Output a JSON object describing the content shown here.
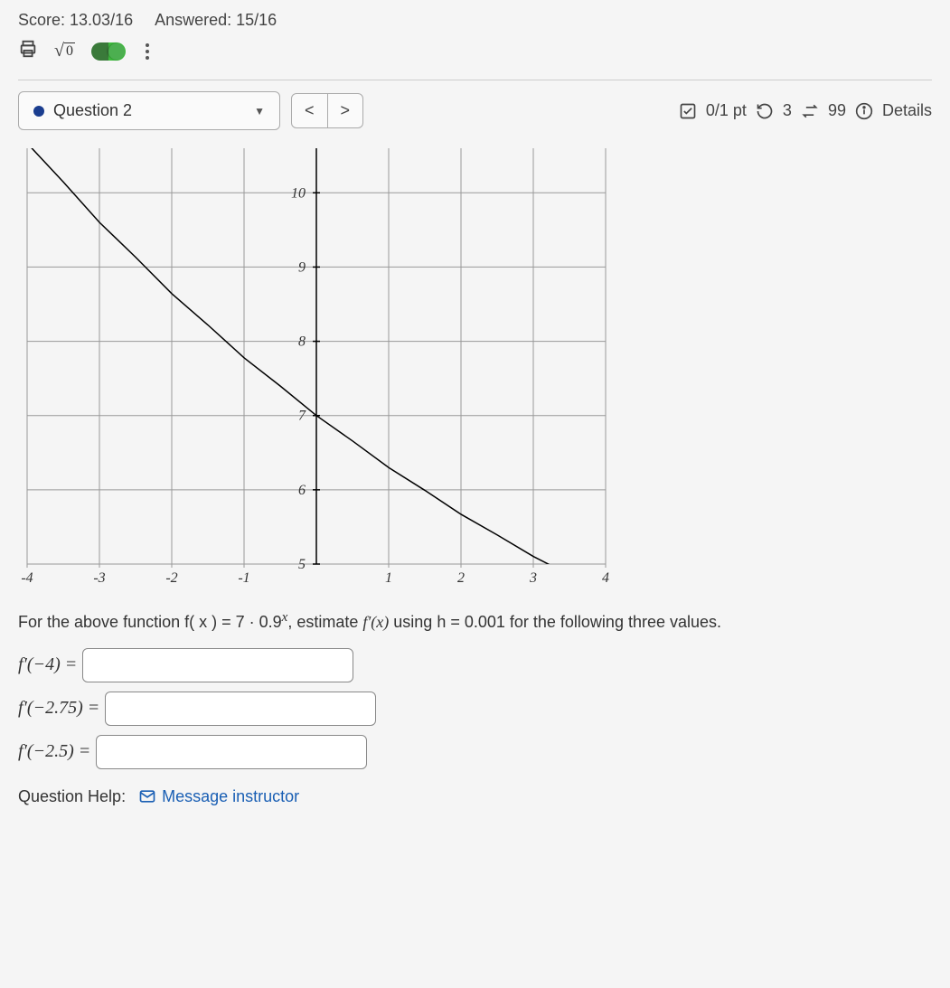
{
  "header": {
    "score_label": "Score: 13.03/16",
    "answered_label": "Answered: 15/16"
  },
  "toolbar": {
    "sqrt_radicand": "0",
    "toggle_on": true
  },
  "question_bar": {
    "question_label": "Question 2",
    "prev_label": "<",
    "next_label": ">",
    "points_label": "0/1 pt",
    "attempts_retry": "3",
    "attempts_swap": "99",
    "details_label": "Details"
  },
  "chart": {
    "type": "line",
    "xlim": [
      -4,
      4
    ],
    "ylim": [
      5,
      10.6
    ],
    "xtick_step": 1,
    "ytick_step": 1,
    "xticks": [
      -4,
      -3,
      -2,
      -1,
      1,
      2,
      3,
      4
    ],
    "yticks": [
      5,
      6,
      7,
      8,
      9,
      10
    ],
    "grid_color": "#999999",
    "axis_color": "#000000",
    "background_color": "#f5f5f5",
    "line_color": "#000000",
    "line_width": 1.5,
    "tick_font_size": 16,
    "curve": {
      "formula": "7 * 0.9^x",
      "points": [
        [
          -4,
          10.668
        ],
        [
          -3.5,
          10.147
        ],
        [
          -3,
          9.602
        ],
        [
          -2.5,
          9.133
        ],
        [
          -2,
          8.642
        ],
        [
          -1.5,
          8.22
        ],
        [
          -1,
          7.778
        ],
        [
          -0.5,
          7.398
        ],
        [
          0,
          7.0
        ],
        [
          0.5,
          6.658
        ],
        [
          1,
          6.3
        ],
        [
          1.5,
          5.993
        ],
        [
          2,
          5.67
        ],
        [
          2.5,
          5.393
        ],
        [
          3,
          5.103
        ],
        [
          3.5,
          4.854
        ],
        [
          4,
          4.593
        ]
      ]
    }
  },
  "problem": {
    "text_part1": "For the above function f( x ) = 7 · 0.9",
    "text_exp": "x",
    "text_part2": ", estimate ",
    "text_fprime": "f′(x)",
    "text_part3": " using h = 0.001 for the following three values.",
    "answers": [
      {
        "lhs": "f′(−4) =",
        "value": ""
      },
      {
        "lhs": "f′(−2.75) =",
        "value": ""
      },
      {
        "lhs": "f′(−2.5) =",
        "value": ""
      }
    ]
  },
  "help": {
    "label": "Question Help:",
    "link_label": "Message instructor"
  }
}
